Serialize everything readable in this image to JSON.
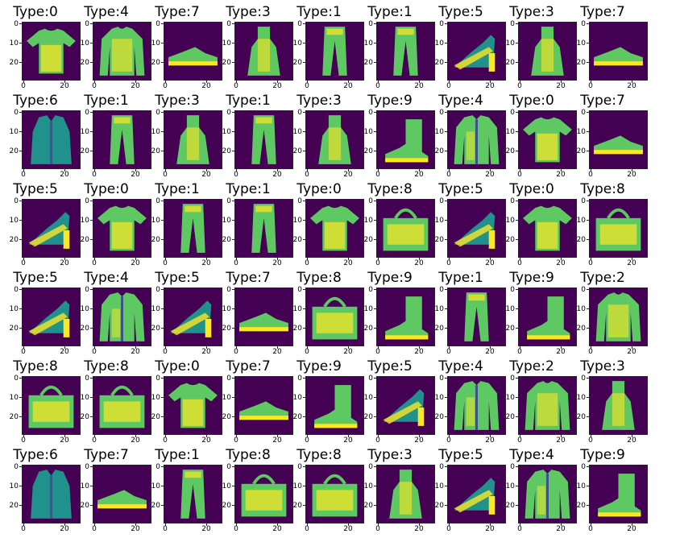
{
  "figure": {
    "title_prefix": "Type:",
    "rows": 6,
    "cols": 9,
    "yticks": [
      "0",
      "10",
      "20"
    ],
    "xticks": [
      "0",
      "20"
    ],
    "colormap": [
      "#440154",
      "#3b528b",
      "#21918c",
      "#5ec962",
      "#fde725"
    ],
    "labels": [
      [
        0,
        4,
        7,
        3,
        1,
        1,
        5,
        3,
        7
      ],
      [
        6,
        1,
        3,
        1,
        3,
        9,
        4,
        0,
        7
      ],
      [
        5,
        0,
        1,
        1,
        0,
        8,
        5,
        0,
        8
      ],
      [
        5,
        4,
        5,
        7,
        8,
        9,
        1,
        9,
        2
      ],
      [
        8,
        8,
        0,
        7,
        9,
        5,
        4,
        2,
        3
      ],
      [
        6,
        7,
        1,
        8,
        8,
        3,
        5,
        4,
        9
      ]
    ],
    "images": [
      [
        "t-shirt-image",
        "pullover-image",
        "sneaker-image",
        "dress-image",
        "trouser-image",
        "trouser-image",
        "sandal-image",
        "dress-image",
        "sneaker-image"
      ],
      [
        "shirt-image",
        "trouser-image",
        "dress-image",
        "trouser-image",
        "dress-image",
        "ankle-boot-image",
        "coat-image",
        "t-shirt-image",
        "sneaker-image"
      ],
      [
        "sandal-image",
        "t-shirt-image",
        "trouser-image",
        "trouser-image",
        "t-shirt-image",
        "bag-image",
        "sandal-image",
        "t-shirt-image",
        "bag-image"
      ],
      [
        "sandal-image",
        "coat-image",
        "sandal-image",
        "sneaker-image",
        "bag-image",
        "ankle-boot-image",
        "trouser-image",
        "ankle-boot-image",
        "pullover-image"
      ],
      [
        "bag-image",
        "bag-image",
        "t-shirt-image",
        "sneaker-image",
        "ankle-boot-image",
        "sandal-image",
        "coat-image",
        "pullover-image",
        "dress-image"
      ],
      [
        "shirt-image",
        "sneaker-image",
        "trouser-image",
        "bag-image",
        "bag-image",
        "dress-image",
        "sandal-image",
        "coat-image",
        "ankle-boot-image"
      ]
    ]
  }
}
